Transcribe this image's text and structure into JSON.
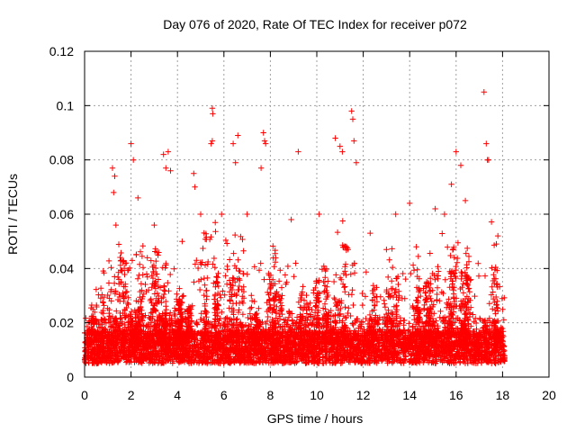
{
  "chart_data": {
    "type": "scatter",
    "title": "Day 076 of 2020, Rate Of TEC Index for receiver p072",
    "xlabel": "GPS time / hours",
    "ylabel": "ROTI / TECUs",
    "xlim": [
      0,
      20
    ],
    "ylim": [
      0,
      0.12
    ],
    "x_ticks": [
      0,
      2,
      4,
      6,
      8,
      10,
      12,
      14,
      16,
      18,
      20
    ],
    "x_tick_labels": [
      "0",
      "2",
      "4",
      "6",
      "8",
      "10",
      "12",
      "14",
      "16",
      "18",
      "20"
    ],
    "y_ticks": [
      0,
      0.02,
      0.04,
      0.06,
      0.08,
      0.1,
      0.12
    ],
    "y_tick_labels": [
      "0",
      "0.02",
      "0.04",
      "0.06",
      "0.08",
      "0.1",
      "0.12"
    ],
    "grid": true,
    "marker": "plus",
    "color": "#ff0000",
    "data_range_hours": [
      0,
      18.1
    ],
    "series": [
      {
        "name": "ROTI",
        "points": [
          [
            1.2,
            0.077
          ],
          [
            1.25,
            0.068
          ],
          [
            1.3,
            0.074
          ],
          [
            2.0,
            0.086
          ],
          [
            2.1,
            0.08
          ],
          [
            3.4,
            0.082
          ],
          [
            3.6,
            0.083
          ],
          [
            3.7,
            0.076
          ],
          [
            3.5,
            0.077
          ],
          [
            5.5,
            0.099
          ],
          [
            5.52,
            0.097
          ],
          [
            5.45,
            0.086
          ],
          [
            5.5,
            0.087
          ],
          [
            6.6,
            0.089
          ],
          [
            6.4,
            0.086
          ],
          [
            6.5,
            0.079
          ],
          [
            7.7,
            0.09
          ],
          [
            7.75,
            0.087
          ],
          [
            7.8,
            0.086
          ],
          [
            7.6,
            0.077
          ],
          [
            9.2,
            0.083
          ],
          [
            10.8,
            0.088
          ],
          [
            11.0,
            0.085
          ],
          [
            11.1,
            0.083
          ],
          [
            11.5,
            0.098
          ],
          [
            11.55,
            0.095
          ],
          [
            11.6,
            0.087
          ],
          [
            11.7,
            0.079
          ],
          [
            16.0,
            0.083
          ],
          [
            16.2,
            0.078
          ],
          [
            17.2,
            0.105
          ],
          [
            17.3,
            0.086
          ],
          [
            17.35,
            0.08
          ],
          [
            17.4,
            0.08
          ],
          [
            4.7,
            0.075
          ],
          [
            4.75,
            0.07
          ],
          [
            1.35,
            0.056
          ],
          [
            2.3,
            0.066
          ],
          [
            3.0,
            0.056
          ],
          [
            4.2,
            0.05
          ],
          [
            5.0,
            0.06
          ],
          [
            5.9,
            0.06
          ],
          [
            7.0,
            0.06
          ],
          [
            8.9,
            0.058
          ],
          [
            10.1,
            0.06
          ],
          [
            12.3,
            0.053
          ],
          [
            13.4,
            0.06
          ],
          [
            14.0,
            0.064
          ],
          [
            15.1,
            0.062
          ],
          [
            15.5,
            0.06
          ],
          [
            16.4,
            0.065
          ],
          [
            17.8,
            0.052
          ],
          [
            15.8,
            0.071
          ],
          [
            13.0,
            0.047
          ]
        ],
        "density_profile": {
          "description": "Dense band of points between 0.005 and 0.02 across 0–18.1 h with many spikes to 0.03–0.06",
          "envelope_hours": [
            0,
            1,
            1.5,
            2,
            2.5,
            3,
            3.5,
            4,
            4.5,
            5,
            5.5,
            6,
            6.5,
            7,
            7.5,
            8,
            8.5,
            9,
            9.5,
            10,
            10.5,
            11,
            11.5,
            12,
            12.5,
            13,
            13.5,
            14,
            14.5,
            15,
            15.5,
            16,
            16.5,
            17,
            17.5,
            18
          ],
          "envelope_upper": [
            0.02,
            0.045,
            0.05,
            0.045,
            0.05,
            0.045,
            0.06,
            0.035,
            0.03,
            0.06,
            0.06,
            0.05,
            0.06,
            0.05,
            0.045,
            0.055,
            0.045,
            0.05,
            0.035,
            0.04,
            0.045,
            0.06,
            0.06,
            0.04,
            0.035,
            0.045,
            0.06,
            0.06,
            0.04,
            0.05,
            0.055,
            0.06,
            0.05,
            0.045,
            0.06,
            0.04
          ]
        }
      }
    ]
  }
}
